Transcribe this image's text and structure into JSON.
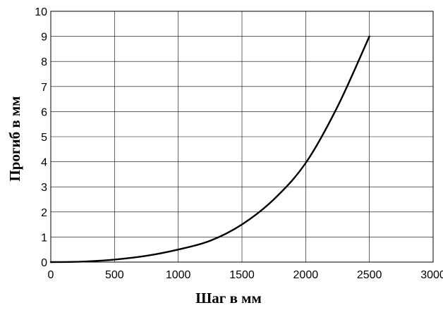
{
  "chart_data": {
    "type": "line",
    "title": "",
    "xlabel": "Шаг в мм",
    "ylabel": "Прогиб в мм",
    "xlim": [
      0,
      3000
    ],
    "ylim": [
      0,
      10
    ],
    "x_ticks": [
      0,
      500,
      1000,
      1500,
      2000,
      2500,
      3000
    ],
    "y_ticks": [
      0,
      1,
      2,
      3,
      4,
      5,
      6,
      7,
      8,
      9,
      10
    ],
    "grid": true,
    "legend": "none",
    "colors": {
      "line": "#000000",
      "grid": "#000000",
      "frame": "#000000",
      "background": "#ffffff"
    },
    "series": [
      {
        "x": [
          0,
          250,
          500,
          750,
          1000,
          1250,
          1500,
          1750,
          2000,
          2250,
          2500
        ],
        "y": [
          0,
          0.02,
          0.1,
          0.25,
          0.5,
          0.85,
          1.5,
          2.5,
          3.95,
          6.2,
          9.0
        ]
      }
    ]
  }
}
